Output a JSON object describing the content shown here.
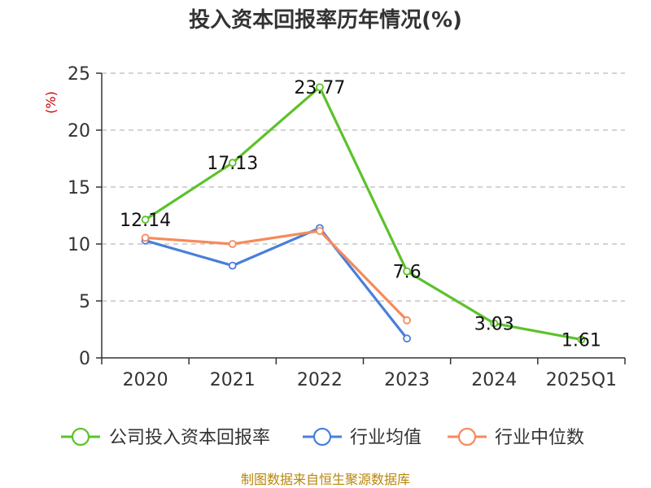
{
  "chart_data": {
    "type": "line",
    "title": "投入资本回报率历年情况(%)",
    "ylabel": "(%)",
    "xlabel": "",
    "categories": [
      "2020",
      "2021",
      "2022",
      "2023",
      "2024",
      "2025Q1"
    ],
    "ylim": [
      0,
      25
    ],
    "yticks": [
      0,
      5,
      10,
      15,
      20,
      25
    ],
    "grid": true,
    "legend_position": "bottom",
    "series": [
      {
        "name": "公司投入资本回报率",
        "color": "#5cc22a",
        "values": [
          12.14,
          17.13,
          23.77,
          7.6,
          3.03,
          1.61
        ],
        "labels": [
          "12.14",
          "17.13",
          "23.77",
          "7.6",
          "3.03",
          "1.61"
        ]
      },
      {
        "name": "行业均值",
        "color": "#4a7fd8",
        "values": [
          10.3,
          8.1,
          11.4,
          1.7,
          null,
          null
        ]
      },
      {
        "name": "行业中位数",
        "color": "#f58a5c",
        "values": [
          10.55,
          10.0,
          11.15,
          3.3,
          null,
          null
        ]
      }
    ],
    "source": "制图数据来自恒生聚源数据库"
  }
}
